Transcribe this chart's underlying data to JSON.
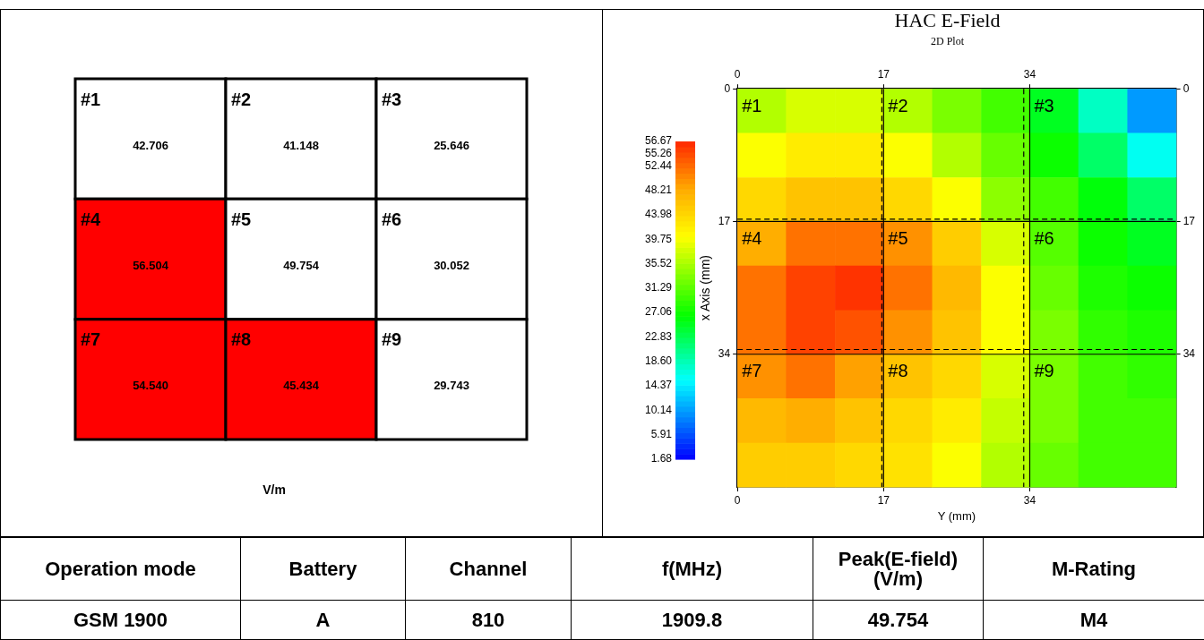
{
  "chart_data": [
    {
      "type": "heatmap",
      "categories": [
        null,
        null,
        null
      ],
      "y_categories": [
        null,
        null,
        null
      ],
      "cells": [
        [
          42.706,
          41.148,
          25.646
        ],
        [
          56.504,
          49.754,
          30.052
        ],
        [
          54.54,
          45.434,
          29.743
        ]
      ],
      "cell_labels": [
        [
          "42.706",
          "41.148",
          "25.646"
        ],
        [
          "56.504",
          "49.754",
          "30.052"
        ],
        [
          "54.540",
          "45.434",
          "29.743"
        ]
      ],
      "annotations": [
        "#1",
        "#2",
        "#3",
        "#4",
        "#5",
        "#6",
        "#7",
        "#8",
        "#9"
      ],
      "colors": [
        [
          "#ffffff",
          "#ffffff",
          "#ffffff"
        ],
        [
          "#ff0000",
          "#ffffff",
          "#ffffff"
        ],
        [
          "#ff0000",
          "#ff0000",
          "#ffffff"
        ]
      ],
      "xlabel": "V/m"
    },
    {
      "type": "heatmap",
      "title": "HAC E-Field",
      "subtitle": "2D Plot",
      "xlabel": "Y (mm)",
      "ylabel": "x Axis (mm)",
      "x": [
        2.8,
        8.5,
        14.2,
        19.8,
        25.5,
        31.2,
        36.8,
        42.5,
        48.2
      ],
      "y": [
        2.8,
        8.5,
        14.2,
        19.8,
        25.5,
        31.2,
        36.8,
        42.5,
        48.2
      ],
      "cells": [
        [
          36,
          38,
          38,
          36,
          33,
          30,
          25,
          18,
          10
        ],
        [
          40,
          42,
          42,
          40,
          36,
          32,
          27,
          22,
          16
        ],
        [
          44,
          46,
          46,
          44,
          40,
          34,
          30,
          26,
          22
        ],
        [
          48,
          52,
          52,
          50,
          45,
          38,
          31,
          27,
          25
        ],
        [
          52,
          55,
          56,
          52,
          47,
          40,
          32,
          28,
          27
        ],
        [
          52,
          55,
          54,
          50,
          46,
          40,
          33,
          29,
          28
        ],
        [
          50,
          52,
          49,
          46,
          44,
          38,
          33,
          30,
          29
        ],
        [
          47,
          48,
          46,
          44,
          42,
          37,
          33,
          30,
          30
        ],
        [
          45,
          45,
          44,
          43,
          40,
          36,
          32,
          30,
          30
        ]
      ],
      "xlim": [
        0,
        51
      ],
      "xticks": [
        0,
        17,
        34
      ],
      "ylim": [
        51,
        0
      ],
      "yticks": [
        0,
        17,
        34
      ],
      "x2lim": [
        0,
        51
      ],
      "x2ticks": [
        0,
        17,
        34
      ],
      "y2lim": [
        51,
        0
      ],
      "y2ticks": [
        0,
        17,
        34
      ],
      "clim": [
        1.68,
        56.67
      ],
      "cticks": [
        1.68,
        5.91,
        10.14,
        14.37,
        {
          "value": 18.6,
          "label": "18.60"
        },
        22.83,
        27.06,
        31.29,
        35.52,
        39.75,
        43.98,
        48.21,
        52.44,
        55.26,
        56.67
      ],
      "ref_lines": [
        {
          "axis": "x",
          "value": 17
        },
        {
          "axis": "x",
          "value": 34
        },
        {
          "axis": "y",
          "value": 17
        },
        {
          "axis": "y",
          "value": 34
        },
        {
          "axis": "x",
          "value": 16.8,
          "line_style": "dashed"
        },
        {
          "axis": "x",
          "value": 33.3,
          "line_style": "dashed"
        },
        {
          "axis": "y",
          "value": 16.7,
          "line_style": "dashed"
        },
        {
          "axis": "y",
          "value": 33.4,
          "line_style": "dashed"
        }
      ],
      "annotations": [
        "#1",
        "#2",
        "#3",
        "#4",
        "#5",
        "#6",
        "#7",
        "#8",
        "#9"
      ],
      "grid": false,
      "legend": false
    },
    {
      "type": "other",
      "categories": [
        "Operation mode",
        "Battery",
        "Channel",
        "f(MHz)",
        "Peak(E-field)\n(V/m)",
        "M-Rating"
      ],
      "cell_labels": [
        [
          "GSM 1900",
          "A",
          "810",
          "1909.8",
          "49.754",
          "M4"
        ]
      ]
    }
  ]
}
